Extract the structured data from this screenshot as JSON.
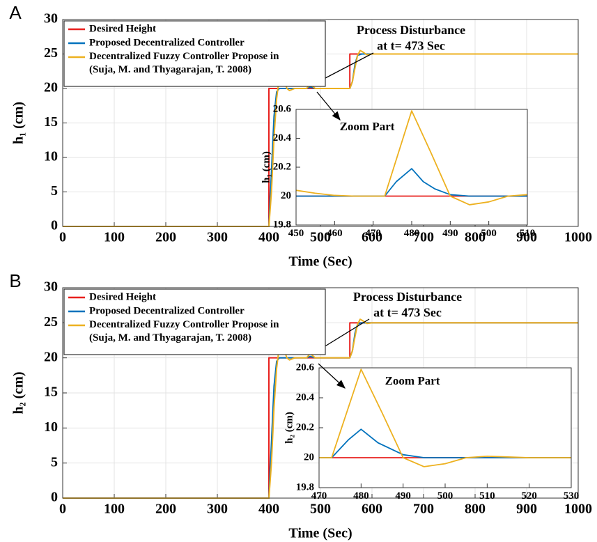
{
  "chart_data": [
    {
      "type": "line",
      "panel_label": "A",
      "xlabel": "Time (Sec)",
      "ylabel": "h₁ (cm)",
      "xlim": [
        0,
        1000
      ],
      "xticks": [
        0,
        100,
        200,
        300,
        400,
        500,
        600,
        700,
        800,
        900,
        1000
      ],
      "ylim": [
        0,
        30
      ],
      "yticks": [
        0,
        5,
        10,
        15,
        20,
        25,
        30
      ],
      "grid": true,
      "legend": "upper left",
      "annotation": "Process Disturbance\nat t= 473 Sec",
      "series": [
        {
          "name": "Desired Height",
          "color": "#e8201e",
          "x": [
            0,
            400,
            400,
            557,
            557,
            1000
          ],
          "values": [
            0,
            0,
            20,
            20,
            25,
            25
          ]
        },
        {
          "name": "Proposed Decentralized Controller",
          "color": "#0072bd",
          "x": [
            0,
            400,
            405,
            410,
            415,
            420,
            430,
            473,
            480,
            490,
            557,
            562,
            567,
            572,
            580,
            600,
            1000
          ],
          "values": [
            0,
            0,
            8,
            16,
            19.5,
            20,
            20,
            20,
            20.2,
            20,
            20,
            21,
            23.5,
            24.8,
            25,
            25,
            25
          ]
        },
        {
          "name": "Decentralized Fuzzy Controller Propose in\n(Suja, M. and Thyagarajan, T. 2008)",
          "color": "#edb120",
          "x": [
            0,
            400,
            405,
            410,
            415,
            420,
            425,
            430,
            435,
            440,
            450,
            473,
            480,
            490,
            500,
            557,
            562,
            567,
            572,
            577,
            582,
            590,
            600,
            1000
          ],
          "values": [
            0,
            0,
            5,
            13,
            18.5,
            21.5,
            22,
            21,
            20,
            19.7,
            20,
            20,
            20.6,
            20,
            20,
            20,
            21,
            23,
            24.8,
            25.5,
            25.3,
            24.9,
            25,
            25
          ]
        }
      ]
    },
    {
      "type": "line",
      "ylabel": "h₁ (cm)",
      "annotation": "Zoom Part",
      "xlim": [
        450,
        510
      ],
      "xticks": [
        450,
        460,
        470,
        480,
        490,
        500,
        510
      ],
      "ylim": [
        19.8,
        20.6
      ],
      "yticks": [
        19.8,
        20,
        20.2,
        20.4,
        20.6
      ],
      "grid": false,
      "series": [
        {
          "color": "#e8201e",
          "x": [
            450,
            510
          ],
          "values": [
            20,
            20
          ]
        },
        {
          "color": "#0072bd",
          "x": [
            450,
            473,
            476,
            480,
            483,
            486,
            490,
            495,
            510
          ],
          "values": [
            20,
            20,
            20.1,
            20.19,
            20.1,
            20.05,
            20.01,
            20,
            20
          ]
        },
        {
          "color": "#edb120",
          "x": [
            450,
            455,
            460,
            465,
            473,
            480,
            485,
            490,
            495,
            500,
            505,
            510
          ],
          "values": [
            20.04,
            20.02,
            20.005,
            20,
            20,
            20.59,
            20.3,
            20,
            19.94,
            19.96,
            20,
            20.01
          ]
        }
      ]
    },
    {
      "type": "line",
      "panel_label": "B",
      "xlabel": "Time (Sec)",
      "ylabel": "h₂ (cm)",
      "xlim": [
        0,
        1000
      ],
      "xticks": [
        0,
        100,
        200,
        300,
        400,
        500,
        600,
        700,
        800,
        900,
        1000
      ],
      "ylim": [
        0,
        30
      ],
      "yticks": [
        0,
        5,
        10,
        15,
        20,
        25,
        30
      ],
      "grid": true,
      "legend": "upper left",
      "annotation": "Process Disturbance\nat t= 473 Sec",
      "series": [
        {
          "name": "Desired Height",
          "color": "#e8201e",
          "x": [
            0,
            400,
            400,
            557,
            557,
            1000
          ],
          "values": [
            0,
            0,
            20,
            20,
            25,
            25
          ]
        },
        {
          "name": "Proposed Decentralized Controller",
          "color": "#0072bd",
          "x": [
            0,
            400,
            405,
            410,
            415,
            420,
            430,
            473,
            480,
            490,
            557,
            562,
            567,
            572,
            580,
            600,
            1000
          ],
          "values": [
            0,
            0,
            8,
            16,
            19.5,
            20,
            20,
            20,
            20.2,
            20,
            20,
            21,
            23.5,
            24.8,
            25,
            25,
            25
          ]
        },
        {
          "name": "Decentralized Fuzzy Controller Propose in\n(Suja, M. and Thyagarajan, T. 2008)",
          "color": "#edb120",
          "x": [
            0,
            400,
            405,
            410,
            415,
            420,
            425,
            430,
            435,
            440,
            450,
            473,
            480,
            490,
            500,
            557,
            562,
            567,
            572,
            577,
            582,
            590,
            600,
            1000
          ],
          "values": [
            0,
            0,
            5,
            13,
            18.5,
            21.5,
            22,
            21,
            20,
            19.7,
            20,
            20,
            20.6,
            20,
            20,
            20,
            21,
            23,
            24.8,
            25.5,
            25.3,
            24.9,
            25,
            25
          ]
        }
      ]
    },
    {
      "type": "line",
      "ylabel": "h₂ (cm)",
      "annotation": "Zoom Part",
      "xlim": [
        470,
        530
      ],
      "xticks": [
        470,
        480,
        490,
        500,
        510,
        520,
        530
      ],
      "ylim": [
        19.8,
        20.6
      ],
      "yticks": [
        19.8,
        20,
        20.2,
        20.4,
        20.6
      ],
      "grid": false,
      "series": [
        {
          "color": "#e8201e",
          "x": [
            470,
            530
          ],
          "values": [
            20,
            20
          ]
        },
        {
          "color": "#0072bd",
          "x": [
            470,
            473,
            477,
            480,
            484,
            490,
            495,
            530
          ],
          "values": [
            20,
            20,
            20.12,
            20.19,
            20.1,
            20.02,
            20,
            20
          ]
        },
        {
          "color": "#edb120",
          "x": [
            470,
            473,
            480,
            485,
            490,
            495,
            500,
            505,
            510,
            515,
            520,
            530
          ],
          "values": [
            20,
            20,
            20.59,
            20.3,
            20,
            19.94,
            19.96,
            20,
            20.01,
            20.005,
            20,
            20
          ]
        }
      ]
    }
  ]
}
